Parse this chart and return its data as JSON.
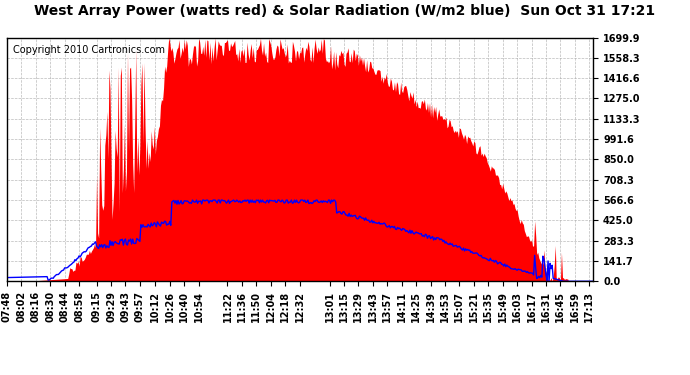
{
  "title": "West Array Power (watts red) & Solar Radiation (W/m2 blue)  Sun Oct 31 17:21",
  "copyright": "Copyright 2010 Cartronics.com",
  "background_color": "#ffffff",
  "plot_bg_color": "#ffffff",
  "y_ticks": [
    0.0,
    141.7,
    283.3,
    425.0,
    566.6,
    708.3,
    850.0,
    991.6,
    1133.3,
    1275.0,
    1416.6,
    1558.3,
    1699.9
  ],
  "y_max": 1699.9,
  "x_labels": [
    "07:48",
    "08:02",
    "08:16",
    "08:30",
    "08:44",
    "08:58",
    "09:15",
    "09:29",
    "09:43",
    "09:57",
    "10:12",
    "10:26",
    "10:40",
    "10:54",
    "11:22",
    "11:36",
    "11:50",
    "12:04",
    "12:18",
    "12:32",
    "13:01",
    "13:15",
    "13:29",
    "13:43",
    "13:57",
    "14:11",
    "14:25",
    "14:39",
    "14:53",
    "15:07",
    "15:21",
    "15:35",
    "15:49",
    "16:03",
    "16:17",
    "16:31",
    "16:45",
    "16:59",
    "17:13"
  ],
  "red_fill_color": "#ff0000",
  "blue_line_color": "#0000ff",
  "grid_color": "#aaaaaa",
  "title_fontsize": 10,
  "tick_fontsize": 7,
  "copyright_fontsize": 7
}
